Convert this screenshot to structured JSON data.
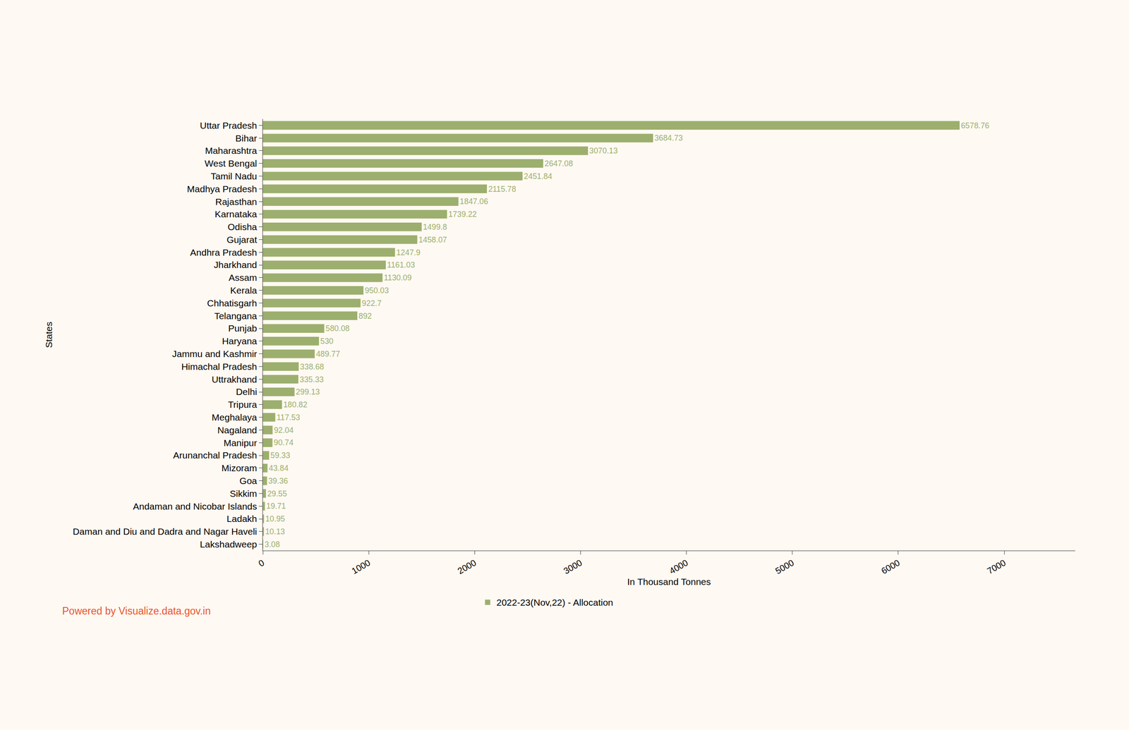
{
  "chart_data": {
    "type": "bar",
    "orientation": "horizontal",
    "x_label": "In Thousand Tonnes",
    "y_label": "States",
    "categories": [
      "Uttar Pradesh",
      "Bihar",
      "Maharashtra",
      "West Bengal",
      "Tamil Nadu",
      "Madhya Pradesh",
      "Rajasthan",
      "Karnataka",
      "Odisha",
      "Gujarat",
      "Andhra Pradesh",
      "Jharkhand",
      "Assam",
      "Kerala",
      "Chhatisgarh",
      "Telangana",
      "Punjab",
      "Haryana",
      "Jammu and Kashmir",
      "Himachal Pradesh",
      "Uttrakhand",
      "Delhi",
      "Tripura",
      "Meghalaya",
      "Nagaland",
      "Manipur",
      "Arunanchal Pradesh",
      "Mizoram",
      "Goa",
      "Sikkim",
      "Andaman and Nicobar Islands",
      "Ladakh",
      "Daman and Diu and Dadra and Nagar Haveli",
      "Lakshadweep"
    ],
    "series": [
      {
        "name": "2022-23(Nov,22) - Allocation",
        "color": "#9caf6e",
        "values": [
          6578.76,
          3684.73,
          3070.13,
          2647.08,
          2451.84,
          2115.78,
          1847.06,
          1739.22,
          1499.8,
          1458.07,
          1247.9,
          1161.03,
          1130.09,
          950.03,
          922.7,
          892,
          580.08,
          530,
          489.77,
          338.68,
          335.33,
          299.13,
          180.82,
          117.53,
          92.04,
          90.74,
          59.33,
          43.84,
          39.36,
          29.55,
          19.71,
          10.95,
          10.13,
          3.08
        ]
      }
    ],
    "xlim": [
      0,
      7670
    ],
    "xticks": [
      0,
      1000,
      2000,
      3000,
      4000,
      5000,
      6000,
      7000
    ],
    "grid": false,
    "data_labels": true,
    "legend": "bottom",
    "annotations": [
      "Powered by Visualize.data.gov.in"
    ]
  }
}
